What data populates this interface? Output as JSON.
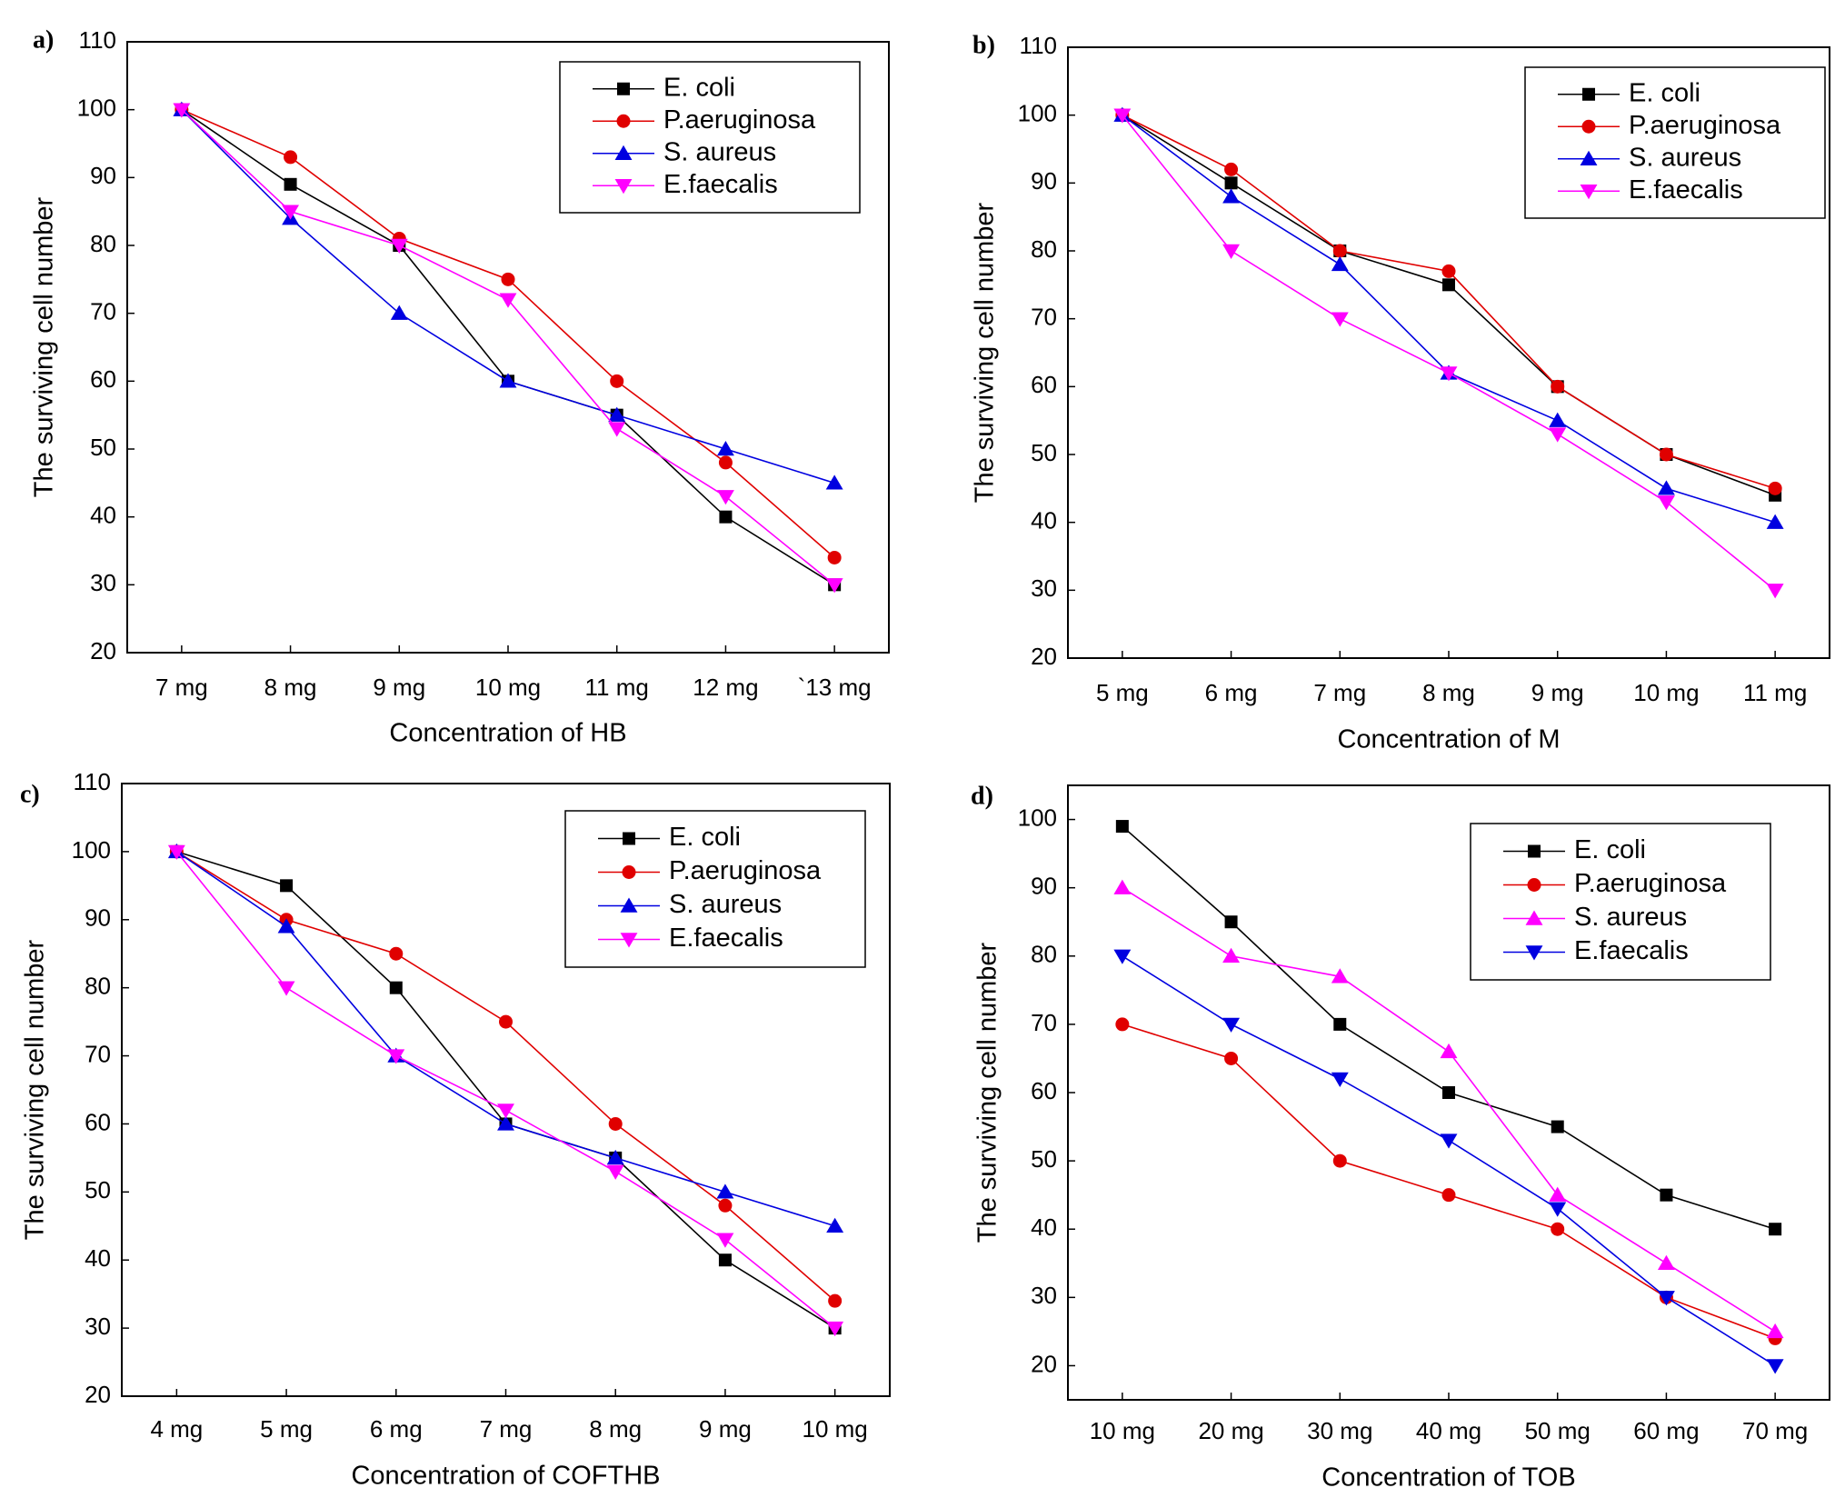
{
  "chart_data": [
    {
      "type": "line",
      "panel_label": "a)",
      "title": "",
      "xlabel": "Concentration of HB",
      "ylabel": "The surviving cell number",
      "categories": [
        "7   mg",
        "8   mg",
        "9   mg",
        "10 mg",
        "11 mg",
        "12 mg",
        "`13 mg"
      ],
      "ylim": [
        20,
        110
      ],
      "yticks": [
        20,
        30,
        40,
        50,
        60,
        70,
        80,
        90,
        100,
        110
      ],
      "legend_position": "top-right",
      "series": [
        {
          "name": "E. coli",
          "color": "#000000",
          "marker": "square",
          "values": [
            100,
            89,
            80,
            60,
            55,
            40,
            30
          ]
        },
        {
          "name": "P.aeruginosa",
          "color": "#e00000",
          "marker": "circle",
          "values": [
            100,
            93,
            81,
            75,
            60,
            48,
            34
          ]
        },
        {
          "name": "S. aureus",
          "color": "#0000e0",
          "marker": "triangle-up",
          "values": [
            100,
            84,
            70,
            60,
            55,
            50,
            45
          ]
        },
        {
          "name": "E.faecalis",
          "color": "#ff00ff",
          "marker": "triangle-down",
          "values": [
            100,
            85,
            80,
            72,
            53,
            43,
            30
          ]
        }
      ]
    },
    {
      "type": "line",
      "panel_label": "b)",
      "title": "",
      "xlabel": "Concentration of M",
      "ylabel": "The surviving cell number",
      "categories": [
        "5   mg",
        "6   mg",
        "7   mg",
        "8   mg",
        "9   mg",
        "10 mg",
        "11 mg"
      ],
      "ylim": [
        20,
        110
      ],
      "yticks": [
        20,
        30,
        40,
        50,
        60,
        70,
        80,
        90,
        100,
        110
      ],
      "legend_position": "top-right",
      "series": [
        {
          "name": "E. coli",
          "color": "#000000",
          "marker": "square",
          "values": [
            100,
            90,
            80,
            75,
            60,
            50,
            44
          ]
        },
        {
          "name": "P.aeruginosa",
          "color": "#e00000",
          "marker": "circle",
          "values": [
            100,
            92,
            80,
            77,
            60,
            50,
            45
          ]
        },
        {
          "name": "S. aureus",
          "color": "#0000e0",
          "marker": "triangle-up",
          "values": [
            100,
            88,
            78,
            62,
            55,
            45,
            40
          ]
        },
        {
          "name": "E.faecalis",
          "color": "#ff00ff",
          "marker": "triangle-down",
          "values": [
            100,
            80,
            70,
            62,
            53,
            43,
            30
          ]
        }
      ]
    },
    {
      "type": "line",
      "panel_label": "c)",
      "title": "",
      "xlabel": "Concentration of COFTHB",
      "ylabel": "The surviving cell number",
      "categories": [
        "4   mg",
        "5   mg",
        "6   mg",
        "7   mg",
        "8   mg",
        "9   mg",
        "10 mg"
      ],
      "ylim": [
        20,
        110
      ],
      "yticks": [
        20,
        30,
        40,
        50,
        60,
        70,
        80,
        90,
        100,
        110
      ],
      "legend_position": "top-right",
      "series": [
        {
          "name": "E. coli",
          "color": "#000000",
          "marker": "square",
          "values": [
            100,
            95,
            80,
            60,
            55,
            40,
            30
          ]
        },
        {
          "name": "P.aeruginosa",
          "color": "#e00000",
          "marker": "circle",
          "values": [
            100,
            90,
            85,
            75,
            60,
            48,
            34
          ]
        },
        {
          "name": "S. aureus",
          "color": "#0000e0",
          "marker": "triangle-up",
          "values": [
            100,
            89,
            70,
            60,
            55,
            50,
            45
          ]
        },
        {
          "name": "E.faecalis",
          "color": "#ff00ff",
          "marker": "triangle-down",
          "values": [
            100,
            80,
            70,
            62,
            53,
            43,
            30
          ]
        }
      ]
    },
    {
      "type": "line",
      "panel_label": "d)",
      "title": "",
      "xlabel": "Concentration of TOB",
      "ylabel": "The surviving cell number",
      "categories": [
        "10 mg",
        "20 mg",
        "30 mg",
        "40 mg",
        "50 mg",
        "60 mg",
        "70 mg"
      ],
      "ylim": [
        15,
        105
      ],
      "yticks": [
        20,
        30,
        40,
        50,
        60,
        70,
        80,
        90,
        100
      ],
      "legend_position": "top-right",
      "series": [
        {
          "name": "E. coli",
          "color": "#000000",
          "marker": "square",
          "values": [
            99,
            85,
            70,
            60,
            55,
            45,
            40
          ]
        },
        {
          "name": "P.aeruginosa",
          "color": "#e00000",
          "marker": "circle",
          "values": [
            70,
            65,
            50,
            45,
            40,
            30,
            24
          ]
        },
        {
          "name": "S. aureus",
          "color": "#ff00ff",
          "marker": "triangle-up",
          "values": [
            90,
            80,
            77,
            66,
            45,
            35,
            25
          ]
        },
        {
          "name": "E.faecalis",
          "color": "#0000e0",
          "marker": "triangle-down",
          "values": [
            80,
            70,
            62,
            53,
            43,
            30,
            20
          ]
        }
      ]
    }
  ]
}
